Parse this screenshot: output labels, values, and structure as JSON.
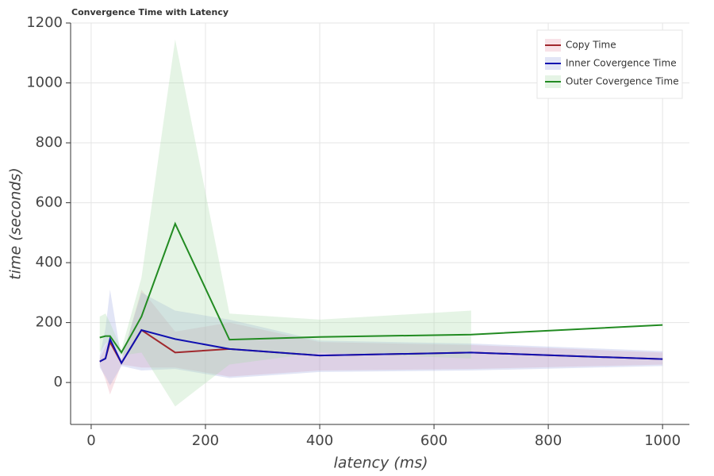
{
  "chart_data": {
    "type": "line",
    "title": "Convergence Time with Latency",
    "x_label": "latency (ms)",
    "y_label": "time (seconds)",
    "x": [
      15,
      25,
      33,
      53,
      88,
      147,
      242,
      400,
      665,
      1000
    ],
    "series": [
      {
        "name": "Copy Time",
        "color": "#a0282d",
        "band_color": "#e8a0b0",
        "values": [
          70,
          80,
          135,
          65,
          175,
          100,
          112,
          90,
          100,
          78
        ],
        "lower": [
          60,
          10,
          -40,
          60,
          50,
          50,
          20,
          40,
          45,
          60
        ],
        "upper": [
          80,
          120,
          150,
          75,
          310,
          170,
          200,
          135,
          125,
          100
        ]
      },
      {
        "name": "Inner Covergence Time",
        "color": "#1010b0",
        "band_color": "#a0a8e0",
        "values": [
          70,
          80,
          145,
          65,
          175,
          145,
          112,
          90,
          100,
          78
        ],
        "lower": [
          50,
          20,
          -10,
          55,
          40,
          45,
          15,
          35,
          40,
          55
        ],
        "upper": [
          90,
          180,
          310,
          80,
          300,
          240,
          210,
          140,
          130,
          105
        ]
      },
      {
        "name": "Outer Covergence Time",
        "color": "#228b22",
        "band_color": "#a8dca8",
        "values": [
          150,
          155,
          155,
          100,
          220,
          530,
          143,
          152,
          160,
          192
        ],
        "lower": [
          100,
          130,
          140,
          90,
          100,
          -80,
          60,
          100,
          80,
          null
        ],
        "upper": [
          220,
          230,
          200,
          110,
          350,
          1145,
          230,
          210,
          240,
          null
        ]
      }
    ],
    "xlim": [
      -36,
      1047
    ],
    "ylim": [
      -140,
      1200
    ],
    "xticks": [
      0,
      200,
      400,
      600,
      800,
      1000
    ],
    "yticks": [
      0,
      200,
      400,
      600,
      800,
      1000,
      1200
    ],
    "grid": true,
    "legend": "top-right"
  }
}
